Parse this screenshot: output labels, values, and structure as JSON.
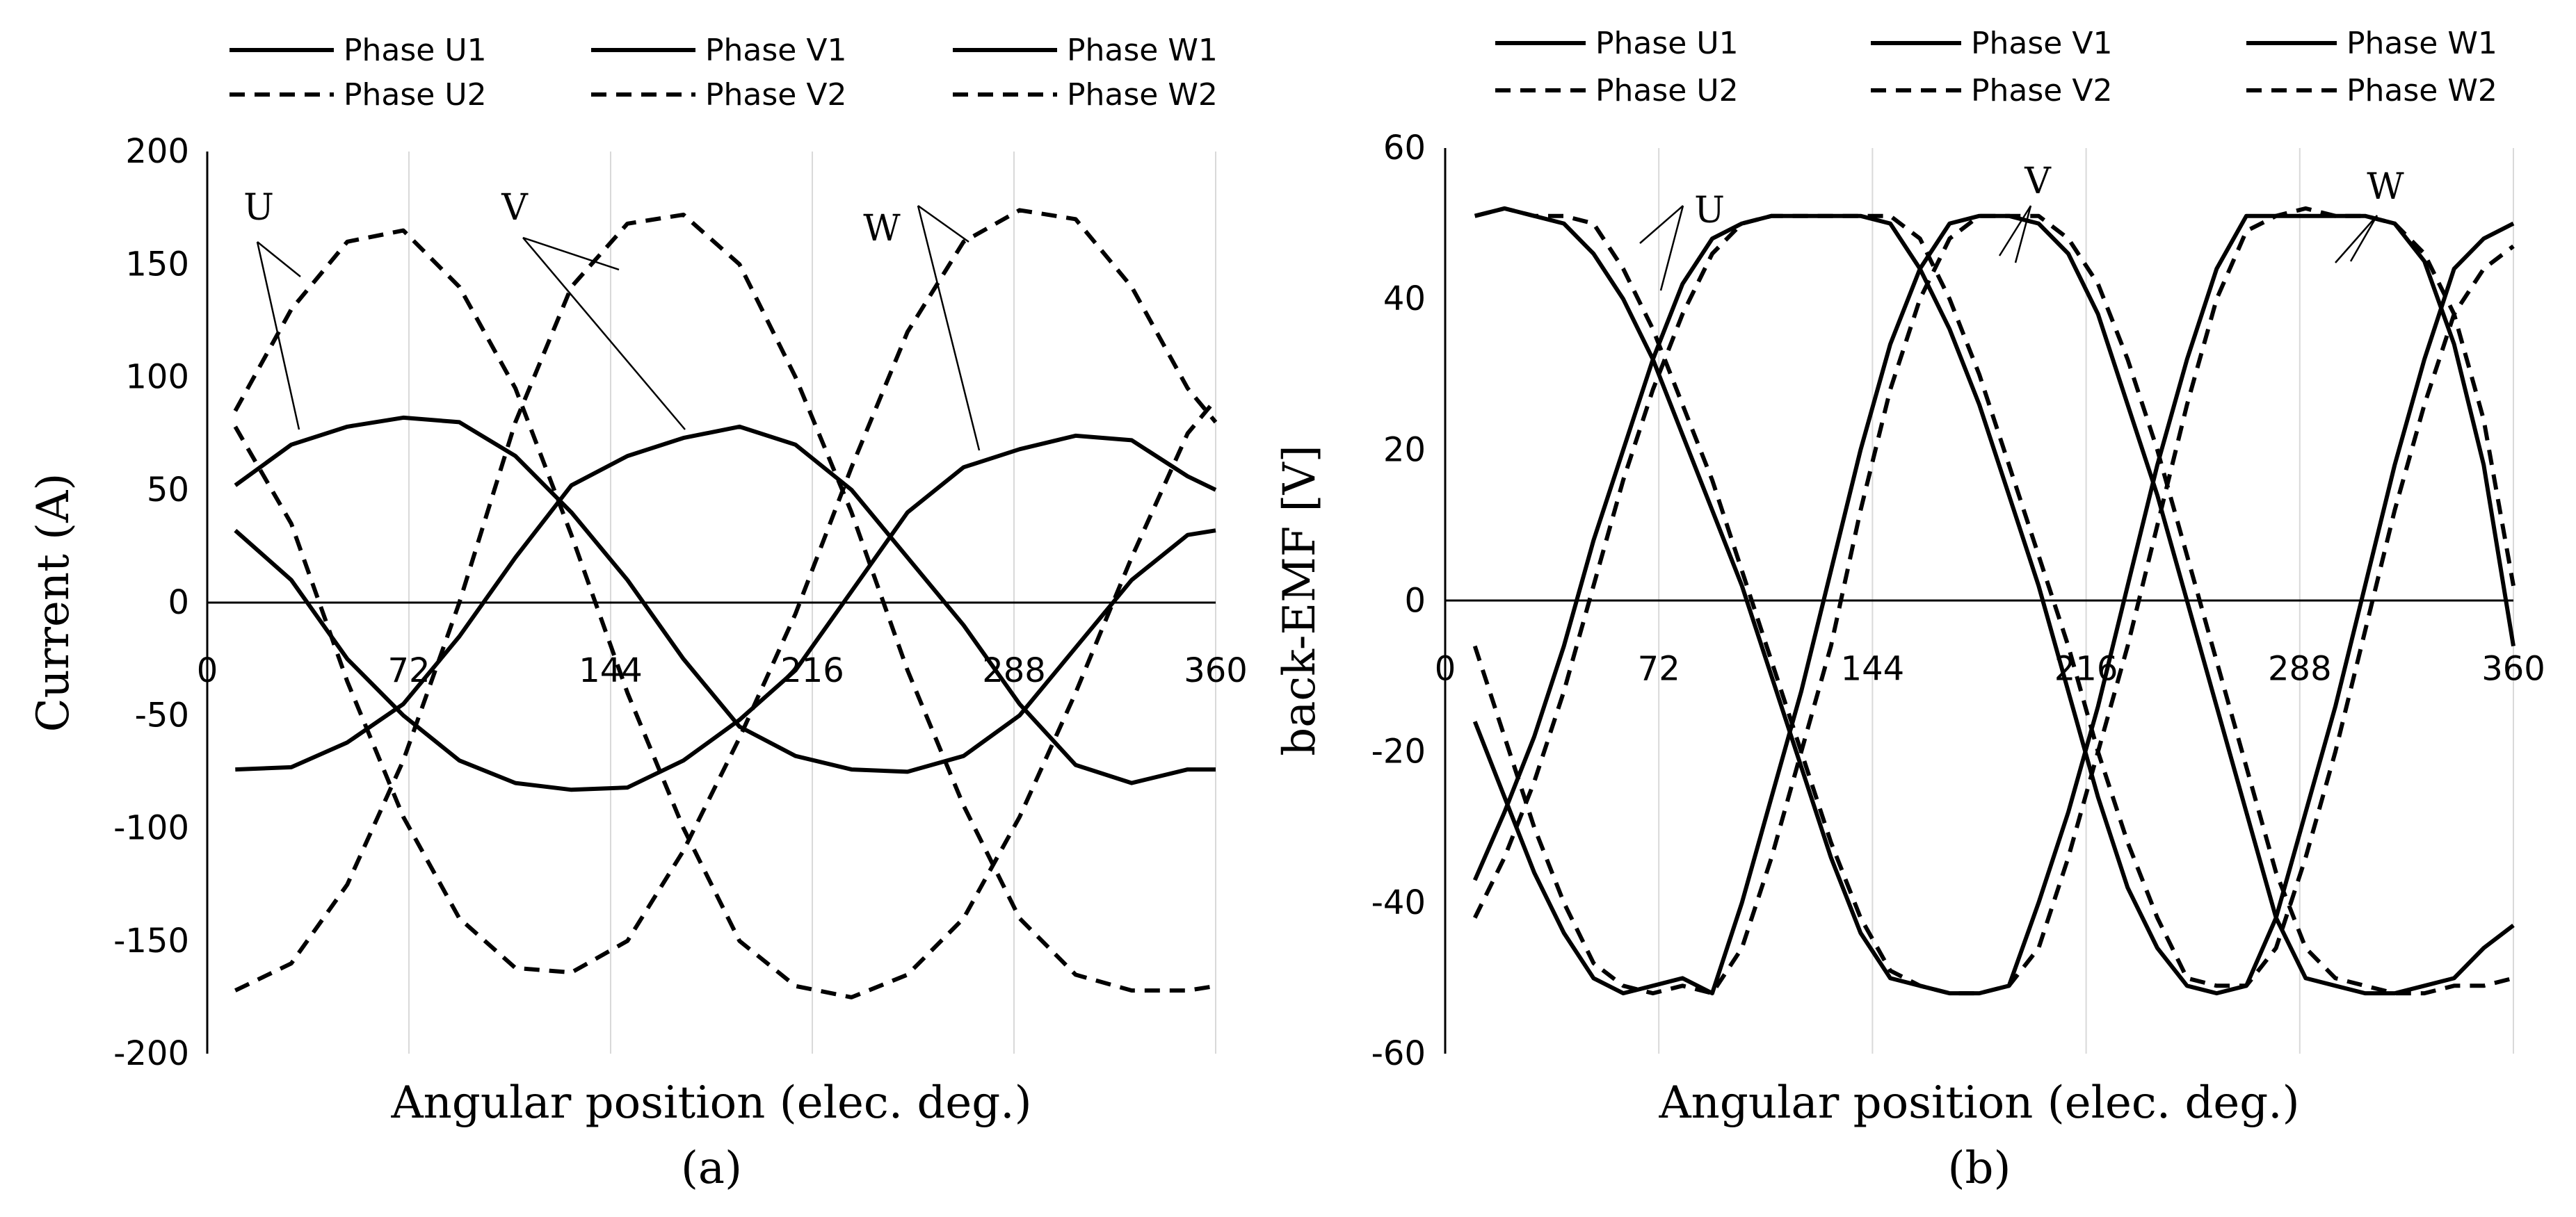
{
  "chart_data": [
    {
      "panel": "(a)",
      "type": "line",
      "title": "",
      "xlabel": "Angular position (elec. deg.)",
      "ylabel": "Current (A)",
      "xlim": [
        0,
        360
      ],
      "ylim": [
        -200,
        200
      ],
      "xticks": [
        0,
        72,
        144,
        216,
        288,
        360
      ],
      "yticks": [
        200,
        150,
        100,
        50,
        0,
        -50,
        -100,
        -150,
        -200
      ],
      "grid": "vertical",
      "legend": "top",
      "series": [
        {
          "name": "Phase U1",
          "style": "solid",
          "x": [
            10,
            30,
            50,
            70,
            90,
            110,
            130,
            150,
            170,
            190,
            210,
            230,
            250,
            270,
            290,
            310,
            330,
            350,
            360
          ],
          "y": [
            52,
            70,
            78,
            82,
            80,
            65,
            40,
            10,
            -25,
            -55,
            -68,
            -74,
            -75,
            -68,
            -50,
            -20,
            10,
            30,
            32
          ]
        },
        {
          "name": "Phase V1",
          "style": "solid",
          "x": [
            10,
            30,
            50,
            70,
            90,
            110,
            130,
            150,
            170,
            190,
            210,
            230,
            250,
            270,
            290,
            310,
            330,
            350,
            360
          ],
          "y": [
            -74,
            -73,
            -62,
            -45,
            -15,
            20,
            52,
            65,
            73,
            78,
            70,
            50,
            20,
            -10,
            -45,
            -72,
            -80,
            -74,
            -74
          ]
        },
        {
          "name": "Phase W1",
          "style": "solid",
          "x": [
            10,
            30,
            50,
            70,
            90,
            110,
            130,
            150,
            170,
            190,
            210,
            230,
            250,
            270,
            290,
            310,
            330,
            350,
            360
          ],
          "y": [
            32,
            10,
            -25,
            -50,
            -70,
            -80,
            -83,
            -82,
            -70,
            -52,
            -30,
            5,
            40,
            60,
            68,
            74,
            72,
            56,
            50
          ]
        },
        {
          "name": "Phase U2",
          "style": "dashed",
          "x": [
            10,
            30,
            50,
            70,
            90,
            110,
            130,
            150,
            170,
            190,
            210,
            230,
            250,
            270,
            290,
            310,
            330,
            350,
            360
          ],
          "y": [
            85,
            130,
            160,
            165,
            140,
            95,
            30,
            -40,
            -100,
            -150,
            -170,
            -175,
            -165,
            -140,
            -95,
            -40,
            20,
            75,
            90
          ]
        },
        {
          "name": "Phase V2",
          "style": "dashed",
          "x": [
            10,
            30,
            50,
            70,
            90,
            110,
            130,
            150,
            170,
            190,
            210,
            230,
            250,
            270,
            290,
            310,
            330,
            350,
            360
          ],
          "y": [
            -172,
            -160,
            -125,
            -70,
            0,
            80,
            140,
            168,
            172,
            150,
            100,
            40,
            -30,
            -90,
            -140,
            -165,
            -172,
            -172,
            -170
          ]
        },
        {
          "name": "Phase W2",
          "style": "dashed",
          "x": [
            10,
            30,
            50,
            70,
            90,
            110,
            130,
            150,
            170,
            190,
            210,
            230,
            250,
            270,
            290,
            310,
            330,
            350,
            360
          ],
          "y": [
            78,
            35,
            -35,
            -95,
            -140,
            -162,
            -164,
            -150,
            -110,
            -60,
            -5,
            60,
            120,
            160,
            174,
            170,
            140,
            95,
            80
          ]
        }
      ],
      "annotations": [
        "U",
        "V",
        "W"
      ]
    },
    {
      "panel": "(b)",
      "type": "line",
      "title": "",
      "xlabel": "Angular position (elec. deg.)",
      "ylabel": "back-EMF [V]",
      "xlim": [
        0,
        360
      ],
      "ylim": [
        -60,
        60
      ],
      "xticks": [
        0,
        72,
        144,
        216,
        288,
        360
      ],
      "yticks": [
        60,
        40,
        20,
        0,
        -20,
        -40,
        -60
      ],
      "grid": "vertical",
      "legend": "top",
      "series": [
        {
          "name": "Phase U1",
          "style": "solid",
          "x": [
            10,
            20,
            30,
            40,
            50,
            60,
            70,
            80,
            90,
            100,
            110,
            120,
            130,
            140,
            150,
            160,
            170,
            180,
            190,
            200,
            210,
            220,
            230,
            240,
            250,
            260,
            270,
            280,
            290,
            300,
            310,
            320,
            330,
            340,
            350,
            360
          ],
          "y": [
            51,
            52,
            51,
            50,
            46,
            40,
            32,
            22,
            12,
            2,
            -10,
            -22,
            -34,
            -44,
            -50,
            -51,
            -52,
            -52,
            -51,
            -40,
            -28,
            -14,
            2,
            18,
            32,
            44,
            51,
            51,
            51,
            51,
            51,
            50,
            45,
            34,
            18,
            -6
          ]
        },
        {
          "name": "Phase V1",
          "style": "solid",
          "x": [
            10,
            20,
            30,
            40,
            50,
            60,
            70,
            80,
            90,
            100,
            110,
            120,
            130,
            140,
            150,
            160,
            170,
            180,
            190,
            200,
            210,
            220,
            230,
            240,
            250,
            260,
            270,
            280,
            290,
            300,
            310,
            320,
            330,
            340,
            350,
            360
          ],
          "y": [
            -16,
            -26,
            -36,
            -44,
            -50,
            -52,
            -51,
            -50,
            -52,
            -40,
            -26,
            -12,
            4,
            20,
            34,
            44,
            50,
            51,
            51,
            50,
            46,
            38,
            26,
            14,
            0,
            -14,
            -28,
            -42,
            -50,
            -51,
            -52,
            -52,
            -51,
            -50,
            -46,
            -43
          ]
        },
        {
          "name": "Phase W1",
          "style": "solid",
          "x": [
            10,
            20,
            30,
            40,
            50,
            60,
            70,
            80,
            90,
            100,
            110,
            120,
            130,
            140,
            150,
            160,
            170,
            180,
            190,
            200,
            210,
            220,
            230,
            240,
            250,
            260,
            270,
            280,
            290,
            300,
            310,
            320,
            330,
            340,
            350,
            360
          ],
          "y": [
            -37,
            -28,
            -18,
            -6,
            8,
            20,
            32,
            42,
            48,
            50,
            51,
            51,
            51,
            51,
            50,
            44,
            36,
            26,
            14,
            2,
            -12,
            -26,
            -38,
            -46,
            -51,
            -52,
            -51,
            -42,
            -28,
            -14,
            2,
            18,
            32,
            44,
            48,
            50
          ]
        },
        {
          "name": "Phase U2",
          "style": "dashed",
          "x": [
            10,
            20,
            30,
            40,
            50,
            60,
            70,
            80,
            90,
            100,
            110,
            120,
            130,
            140,
            150,
            160,
            170,
            180,
            190,
            200,
            210,
            220,
            230,
            240,
            250,
            260,
            270,
            280,
            290,
            300,
            310,
            320,
            330,
            340,
            350,
            360
          ],
          "y": [
            51,
            52,
            51,
            51,
            50,
            44,
            36,
            26,
            16,
            4,
            -8,
            -20,
            -32,
            -42,
            -49,
            -51,
            -52,
            -52,
            -51,
            -46,
            -34,
            -20,
            -6,
            10,
            26,
            40,
            49,
            51,
            52,
            51,
            51,
            50,
            46,
            38,
            24,
            2
          ]
        },
        {
          "name": "Phase V2",
          "style": "dashed",
          "x": [
            10,
            20,
            30,
            40,
            50,
            60,
            70,
            80,
            90,
            100,
            110,
            120,
            130,
            140,
            150,
            160,
            170,
            180,
            190,
            200,
            210,
            220,
            230,
            240,
            250,
            260,
            270,
            280,
            290,
            300,
            310,
            320,
            330,
            340,
            350,
            360
          ],
          "y": [
            -6,
            -18,
            -30,
            -40,
            -48,
            -51,
            -52,
            -51,
            -52,
            -46,
            -34,
            -20,
            -6,
            12,
            28,
            40,
            48,
            51,
            51,
            51,
            48,
            42,
            32,
            20,
            6,
            -8,
            -22,
            -36,
            -46,
            -50,
            -51,
            -52,
            -52,
            -51,
            -51,
            -50
          ]
        },
        {
          "name": "Phase W2",
          "style": "dashed",
          "x": [
            10,
            20,
            30,
            40,
            50,
            60,
            70,
            80,
            90,
            100,
            110,
            120,
            130,
            140,
            150,
            160,
            170,
            180,
            190,
            200,
            210,
            220,
            230,
            240,
            250,
            260,
            270,
            280,
            290,
            300,
            310,
            320,
            330,
            340,
            350,
            360
          ],
          "y": [
            -42,
            -34,
            -24,
            -12,
            2,
            16,
            28,
            38,
            46,
            50,
            51,
            51,
            51,
            51,
            51,
            48,
            40,
            30,
            18,
            6,
            -6,
            -20,
            -32,
            -42,
            -50,
            -51,
            -51,
            -46,
            -34,
            -20,
            -4,
            12,
            26,
            38,
            44,
            47
          ]
        }
      ],
      "annotations": [
        "U",
        "V",
        "W"
      ]
    }
  ]
}
